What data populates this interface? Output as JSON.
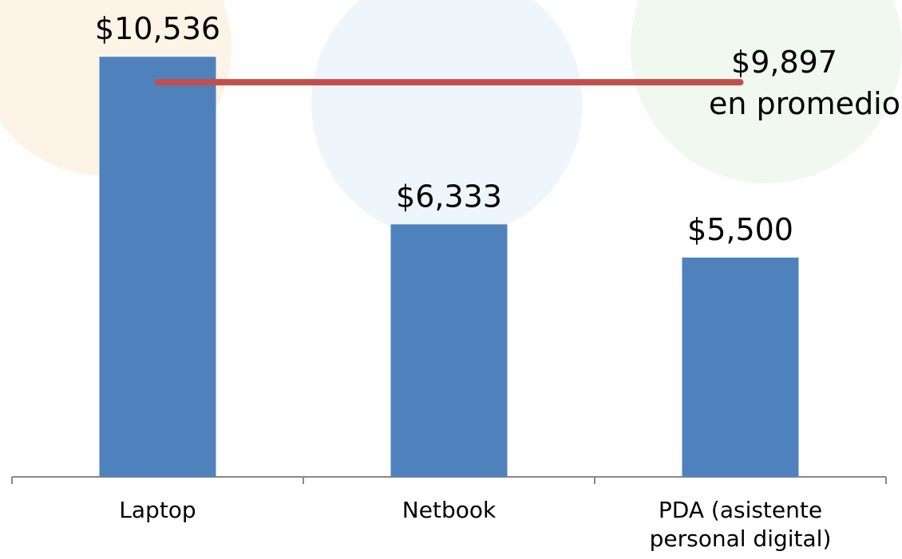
{
  "chart_data": {
    "type": "bar",
    "categories": [
      "Laptop",
      "Netbook",
      "PDA (asistente personal digital)"
    ],
    "values": [
      10536,
      6333,
      5500
    ],
    "value_labels": [
      "$10,536",
      "$6,333",
      "$5,500"
    ],
    "color": "#4f81bd",
    "ylim": [
      0,
      12000
    ],
    "reference_line": {
      "value": 9897,
      "label": "$9,897",
      "text": "en promedio",
      "color": "#c0504d"
    }
  }
}
